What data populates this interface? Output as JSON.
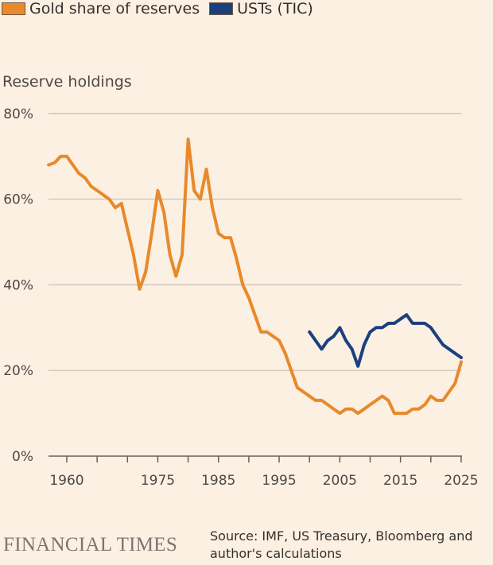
{
  "chart_data": {
    "type": "line",
    "title": "Reserve holdings",
    "xlabel": "",
    "ylabel": "",
    "xlim": [
      1957,
      2025.5
    ],
    "ylim": [
      0,
      80
    ],
    "yticks": [
      0,
      20,
      40,
      60,
      80
    ],
    "ytick_labels": [
      "0%",
      "20%",
      "40%",
      "60%",
      "80%"
    ],
    "xticks_labeled": [
      1960,
      1975,
      1985,
      1995,
      2005,
      2015,
      2025
    ],
    "xtick_labels": [
      "1960",
      "1975",
      "1985",
      "1995",
      "2005",
      "2015",
      "2025"
    ],
    "xtick_marks_every": 5,
    "grid": "horizontal",
    "legend": "top-left",
    "series": [
      {
        "name": "Gold share of reserves",
        "color": "#e8892b",
        "x": [
          1957,
          1958,
          1959,
          1960,
          1961,
          1962,
          1963,
          1964,
          1965,
          1966,
          1967,
          1968,
          1969,
          1970,
          1971,
          1972,
          1973,
          1974,
          1975,
          1976,
          1977,
          1978,
          1979,
          1980,
          1981,
          1982,
          1983,
          1984,
          1985,
          1986,
          1987,
          1988,
          1989,
          1990,
          1991,
          1992,
          1993,
          1994,
          1995,
          1996,
          1997,
          1998,
          1999,
          2000,
          2001,
          2002,
          2003,
          2004,
          2005,
          2006,
          2007,
          2008,
          2009,
          2010,
          2011,
          2012,
          2013,
          2014,
          2015,
          2016,
          2017,
          2018,
          2019,
          2020,
          2021,
          2022,
          2023,
          2024,
          2025
        ],
        "values": [
          68,
          68.5,
          70,
          70,
          68,
          66,
          65,
          63,
          62,
          61,
          60,
          58,
          59,
          53,
          47,
          39,
          43,
          52,
          62,
          57,
          47,
          42,
          47,
          74,
          62,
          60,
          67,
          58,
          52,
          51,
          51,
          46,
          40,
          37,
          33,
          29,
          29,
          28,
          27,
          24,
          20,
          16,
          15,
          14,
          13,
          13,
          12,
          11,
          10,
          11,
          11,
          10,
          11,
          12,
          13,
          14,
          13,
          10,
          10,
          10,
          11,
          11,
          12,
          14,
          13,
          13,
          15,
          17,
          22
        ]
      },
      {
        "name": "USTs (TIC)",
        "color": "#1c3f7e",
        "x": [
          2000,
          2001,
          2002,
          2003,
          2004,
          2005,
          2006,
          2007,
          2008,
          2009,
          2010,
          2011,
          2012,
          2013,
          2014,
          2015,
          2016,
          2017,
          2018,
          2019,
          2020,
          2021,
          2022,
          2023,
          2024,
          2025
        ],
        "values": [
          29,
          27,
          25,
          27,
          28,
          30,
          27,
          25,
          21,
          26,
          29,
          30,
          30,
          31,
          31,
          32,
          33,
          31,
          31,
          31,
          30,
          28,
          26,
          25,
          24,
          23
        ]
      }
    ]
  },
  "legend": {
    "gold_label": "Gold share of reserves",
    "ust_label": "USTs (TIC)"
  },
  "footer": {
    "brand": "FINANCIAL TIMES",
    "source": "Source: IMF, US Treasury, Bloomberg and author's calculations"
  }
}
